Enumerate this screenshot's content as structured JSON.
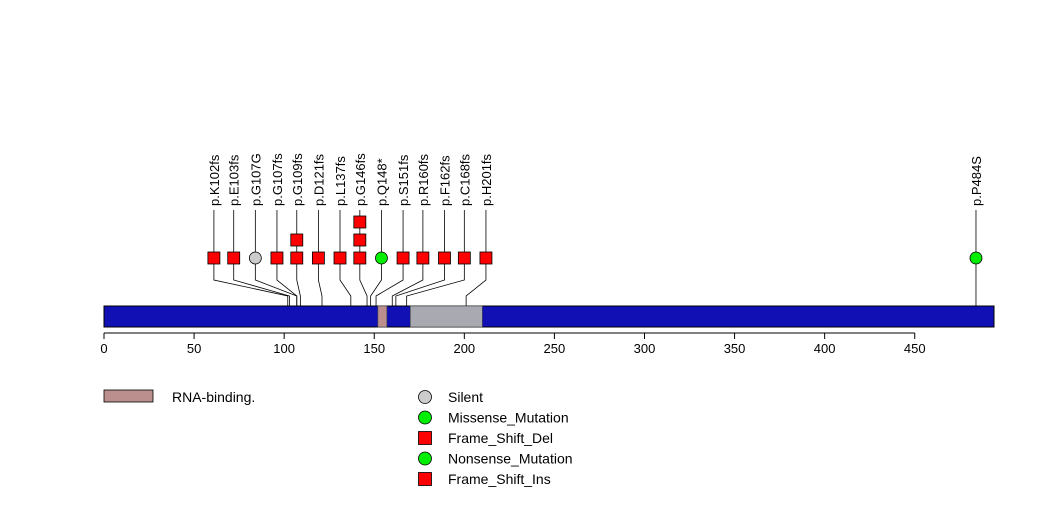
{
  "chart_data": {
    "type": "lollipop",
    "x_axis": {
      "min": 0,
      "max": 494,
      "ticks": [
        0,
        50,
        100,
        150,
        200,
        250,
        300,
        350,
        400,
        450
      ]
    },
    "protein_length": 494,
    "domains": [
      {
        "name": "RNA-binding.",
        "start": 152,
        "end": 157,
        "color": "#bc8f8f"
      },
      {
        "name": "",
        "start": 170,
        "end": 210,
        "color": "#a9a9b2"
      }
    ],
    "mutations": [
      {
        "label": "p.K102fs",
        "position": 102,
        "display_x": 61,
        "count": 1,
        "type": "Frame_Shift_Del"
      },
      {
        "label": "p.E103fs",
        "position": 103,
        "display_x": 72,
        "count": 1,
        "type": "Frame_Shift_Del"
      },
      {
        "label": "p.G107G",
        "position": 107,
        "display_x": 84,
        "count": 1,
        "type": "Silent"
      },
      {
        "label": "p.G107fs",
        "position": 107,
        "display_x": 96,
        "count": 1,
        "type": "Frame_Shift_Del"
      },
      {
        "label": "p.G109fs",
        "position": 109,
        "display_x": 107,
        "count": 2,
        "type": "Frame_Shift_Del"
      },
      {
        "label": "p.D121fs",
        "position": 121,
        "display_x": 119,
        "count": 1,
        "type": "Frame_Shift_Del"
      },
      {
        "label": "p.L137fs",
        "position": 137,
        "display_x": 131,
        "count": 1,
        "type": "Frame_Shift_Del"
      },
      {
        "label": "p.G146fs",
        "position": 146,
        "display_x": 142,
        "count": 3,
        "type": "Frame_Shift_Del"
      },
      {
        "label": "p.Q148*",
        "position": 148,
        "display_x": 154,
        "count": 1,
        "type": "Nonsense_Mutation"
      },
      {
        "label": "p.S151fs",
        "position": 151,
        "display_x": 166,
        "count": 1,
        "type": "Frame_Shift_Del"
      },
      {
        "label": "p.R160fs",
        "position": 160,
        "display_x": 177,
        "count": 1,
        "type": "Frame_Shift_Del"
      },
      {
        "label": "p.F162fs",
        "position": 162,
        "display_x": 189,
        "count": 1,
        "type": "Frame_Shift_Del"
      },
      {
        "label": "p.C168fs",
        "position": 168,
        "display_x": 200,
        "count": 1,
        "type": "Frame_Shift_Del"
      },
      {
        "label": "p.H201fs",
        "position": 201,
        "display_x": 212,
        "count": 1,
        "type": "Frame_Shift_Del"
      },
      {
        "label": "p.P484S",
        "position": 484,
        "display_x": 484,
        "count": 1,
        "type": "Missense_Mutation"
      }
    ],
    "legend": {
      "domains": [
        {
          "label": "RNA-binding.",
          "color": "#bc8f8f"
        }
      ],
      "mutation_types": [
        {
          "label": "Silent",
          "shape": "circle",
          "color": "#cccccc"
        },
        {
          "label": "Missense_Mutation",
          "shape": "circle",
          "color": "#00ee00"
        },
        {
          "label": "Frame_Shift_Del",
          "shape": "square",
          "color": "#ff0000"
        },
        {
          "label": "Nonsense_Mutation",
          "shape": "circle",
          "color": "#00ee00"
        },
        {
          "label": "Frame_Shift_Ins",
          "shape": "square",
          "color": "#ff0000"
        }
      ]
    },
    "colors": {
      "protein_bar": "#1010b4",
      "stem": "#000000"
    }
  }
}
